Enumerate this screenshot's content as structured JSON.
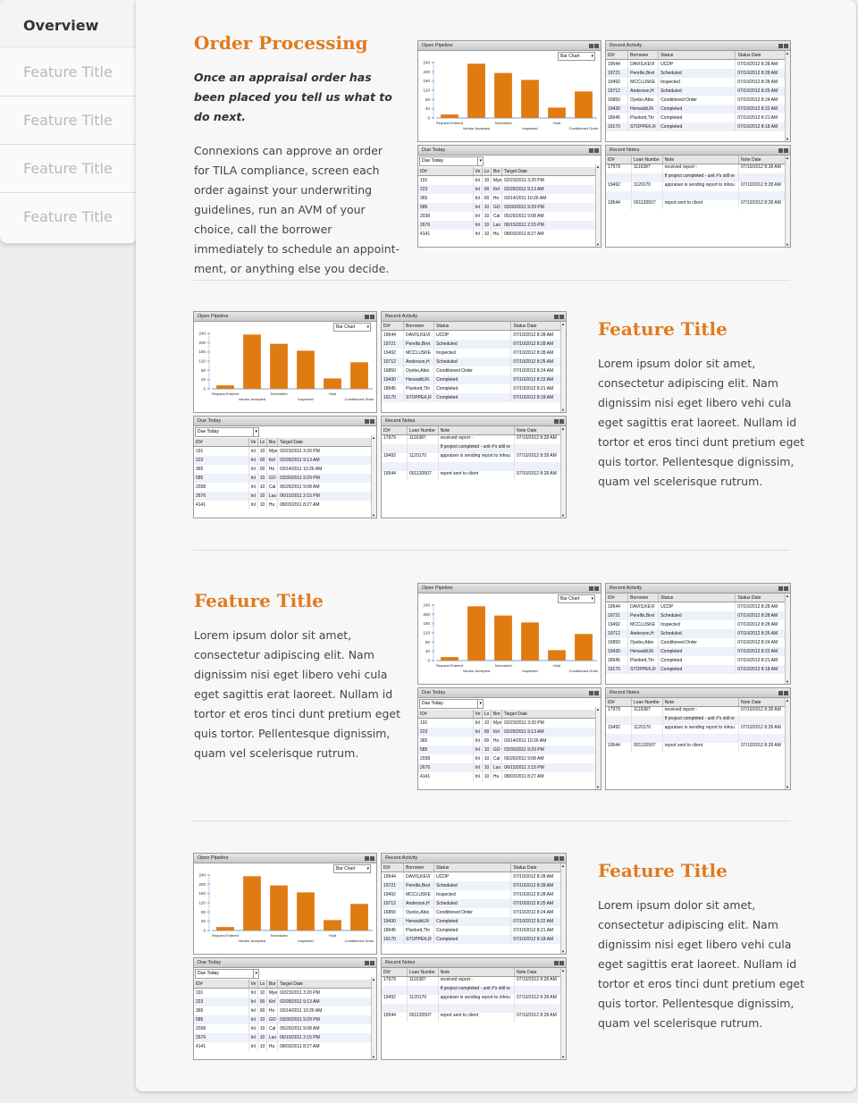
{
  "sidebar": {
    "active_tab": "Overview",
    "tabs": [
      "Feature Title",
      "Feature Title",
      "Feature Title",
      "Feature Title"
    ]
  },
  "sections": [
    {
      "title": "Order Processing",
      "lead": "Once an appraisal order has been placed you tell us what to do next.",
      "body": "Connexions can approve an order for TILA compliance, screen each order against your underwriting guidelines, run an AVM of your choice, call the borrower immediately to schedule an appoint-ment, or anything else you decide."
    },
    {
      "title": "Feature Title",
      "body": "Lorem ipsum dolor sit amet, consectetur adipiscing elit. Nam dignissim nisi eget libero vehi cula eget sagittis erat laoreet. Nullam id tortor et eros tinci dunt pretium eget quis tortor. Pellentesque dignissim, quam vel scelerisque rutrum."
    },
    {
      "title": "Feature Title",
      "body": "Lorem ipsum dolor sit amet, consectetur adipiscing elit. Nam dignissim nisi eget libero vehi cula eget sagittis erat laoreet. Nullam id tortor et eros tinci dunt pretium eget quis tortor. Pellentesque dignissim, quam vel scelerisque rutrum."
    },
    {
      "title": "Feature Title",
      "body": "Lorem ipsum dolor sit amet, consectetur adipiscing elit. Nam dignissim nisi eget libero vehi cula eget sagittis erat laoreet. Nullam id tortor et eros tinci dunt pretium eget quis tortor. Pellentesque dignissim, quam vel scelerisque rutrum."
    }
  ],
  "dashboard": {
    "pipeline": {
      "title": "Open Pipeline",
      "chart_type_label": "Bar Chart"
    },
    "activity": {
      "title": "Recent Activity",
      "columns": [
        "ID#",
        "Borrower",
        "Status",
        "Status Date"
      ],
      "rows": [
        [
          "19544",
          "DAVIS,KEVI",
          "UCDP",
          "07/10/2012 8:28 AM"
        ],
        [
          "19721",
          "Perellis,Bret",
          "Scheduled",
          "07/10/2012 8:28 AM"
        ],
        [
          "19492",
          "MCCLUSKE",
          "Inspected",
          "07/10/2012 8:28 AM"
        ],
        [
          "19712",
          "Anderson,H",
          "Scheduled",
          "07/10/2012 8:25 AM"
        ],
        [
          "16850",
          "Oyebo,Abio",
          "Conditioned Order",
          "07/10/2012 8:24 AM"
        ],
        [
          "19430",
          "Herwaldt,Ri",
          "Completed",
          "07/10/2012 8:22 AM"
        ],
        [
          "18945",
          "Plunkett,Thr",
          "Completed",
          "07/10/2012 8:21 AM"
        ],
        [
          "19170",
          "STOPPEK,R",
          "Completed",
          "07/10/2012 8:18 AM"
        ]
      ]
    },
    "due": {
      "title": "Due Today",
      "filter": "Due Today",
      "columns": [
        "ID#",
        "Ve",
        "Lo",
        "Bor",
        "Target Date"
      ],
      "rows": [
        [
          "191",
          "Inl",
          "10",
          "Mye",
          "02/23/2011 3:20 PM"
        ],
        [
          "223",
          "Inl",
          "00",
          "Kirl",
          "02/28/2011 9:13 AM"
        ],
        [
          "365",
          "Inl",
          "00",
          "Ho",
          "03/14/2011 10:26 AM"
        ],
        [
          "585",
          "Inl",
          "10",
          "GO",
          "03/30/2011 9:29 PM"
        ],
        [
          "2038",
          "Inl",
          "10",
          "Cal",
          "05/26/2011 9:08 AM"
        ],
        [
          "2676",
          "Inl",
          "10",
          "Las",
          "06/15/2011 2:15 PM"
        ],
        [
          "4141",
          "Inl",
          "10",
          "Hu",
          "08/03/2011 8:27 AM"
        ]
      ]
    },
    "notes": {
      "title": "Recent Notes",
      "columns": [
        "ID#",
        "Loan Numbe",
        "Note",
        "Note Date"
      ],
      "rows": [
        [
          "17979",
          "1116387",
          "received report -",
          "07/10/2012 8:28 AM"
        ],
        [
          "",
          "",
          "If project completed - unit #'s still re",
          ""
        ],
        [
          "19492",
          "1120170",
          "appraiser is sending report to inhou",
          "07/10/2012 8:28 AM"
        ],
        [
          "",
          "",
          "",
          ""
        ],
        [
          "19544",
          "001120507",
          "report sent to client",
          "07/10/2012 8:28 AM"
        ]
      ]
    }
  },
  "chart_data": {
    "type": "bar",
    "title": "Open Pipeline",
    "categories": [
      "Request Entered",
      "Vendor Accepted",
      "Scheduled",
      "Inspected",
      "Hold",
      "Conditioned Order"
    ],
    "values": [
      15,
      235,
      195,
      165,
      45,
      115
    ],
    "ylim": [
      0,
      240
    ],
    "yticks": [
      0,
      40,
      80,
      120,
      160,
      200,
      240
    ],
    "color": "#e07b12"
  },
  "colors": {
    "accent": "#e07b1f",
    "bar": "#e07b12"
  }
}
